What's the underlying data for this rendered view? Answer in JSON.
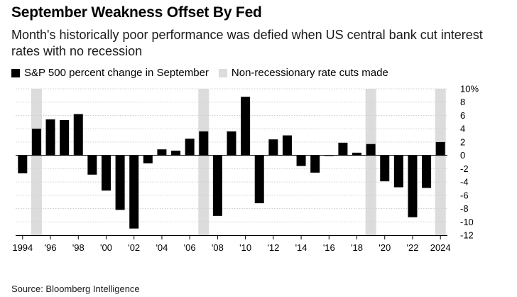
{
  "title": "September Weakness Offset By Fed",
  "subtitle": "Month's historically poor performance was defied when US central bank cut interest rates with no recession",
  "legend": {
    "bars_label": "S&P 500 percent change in September",
    "shade_label": "Non-recessionary rate cuts made"
  },
  "source": "Source: Bloomberg Intelligence",
  "colors": {
    "bar": "#000000",
    "shade": "#dcdcdc"
  },
  "chart_data": {
    "type": "bar",
    "title": "September Weakness Offset By Fed",
    "xlabel": "",
    "ylabel": "",
    "ylim": [
      -12,
      10
    ],
    "yticks": [
      10,
      8,
      6,
      4,
      2,
      0,
      -2,
      -4,
      -6,
      -8,
      -10,
      -12
    ],
    "ytick_labels": [
      "10%",
      "8",
      "6",
      "4",
      "2",
      "0",
      "-2",
      "-4",
      "-6",
      "-8",
      "-10",
      "-12"
    ],
    "xtick_years": [
      1994,
      1996,
      1998,
      2000,
      2002,
      2004,
      2006,
      2008,
      2010,
      2012,
      2014,
      2016,
      2018,
      2020,
      2022,
      2024
    ],
    "xtick_labels": [
      "1994",
      "'96",
      "'98",
      "'00",
      "'02",
      "'04",
      "'06",
      "'08",
      "'10",
      "'12",
      "'14",
      "'16",
      "'18",
      "'20",
      "'22",
      "2024"
    ],
    "categories": [
      1994,
      1995,
      1996,
      1997,
      1998,
      1999,
      2000,
      2001,
      2002,
      2003,
      2004,
      2005,
      2006,
      2007,
      2008,
      2009,
      2010,
      2011,
      2012,
      2013,
      2014,
      2015,
      2016,
      2017,
      2018,
      2019,
      2020,
      2021,
      2022,
      2023,
      2024
    ],
    "series": [
      {
        "name": "S&P 500 percent change in September",
        "values": [
          -2.7,
          4.0,
          5.4,
          5.3,
          6.2,
          -2.9,
          -5.3,
          -8.2,
          -11.0,
          -1.2,
          0.9,
          0.7,
          2.5,
          3.6,
          -9.1,
          3.6,
          8.8,
          -7.2,
          2.4,
          3.0,
          -1.6,
          -2.6,
          -0.1,
          1.9,
          0.4,
          1.7,
          -3.9,
          -4.8,
          -9.3,
          -4.9,
          2.0
        ]
      }
    ],
    "shaded_years": [
      1995,
      2007,
      2019,
      2024
    ]
  }
}
